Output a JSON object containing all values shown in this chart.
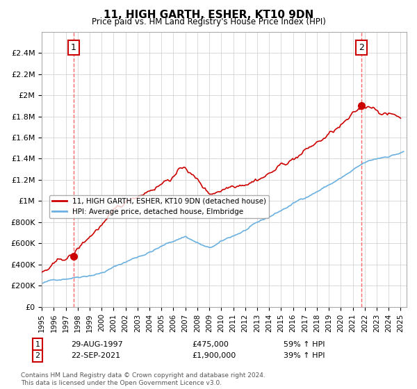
{
  "title": "11, HIGH GARTH, ESHER, KT10 9DN",
  "subtitle": "Price paid vs. HM Land Registry's House Price Index (HPI)",
  "ylim": [
    0,
    2600000
  ],
  "yticks": [
    0,
    200000,
    400000,
    600000,
    800000,
    1000000,
    1200000,
    1400000,
    1600000,
    1800000,
    2000000,
    2200000,
    2400000
  ],
  "ytick_labels": [
    "£0",
    "£200K",
    "£400K",
    "£600K",
    "£800K",
    "£1M",
    "£1.2M",
    "£1.4M",
    "£1.6M",
    "£1.8M",
    "£2M",
    "£2.2M",
    "£2.4M"
  ],
  "xlim_start": 1995.0,
  "xlim_end": 2025.5,
  "xticks": [
    1995,
    1996,
    1997,
    1998,
    1999,
    2000,
    2001,
    2002,
    2003,
    2004,
    2005,
    2006,
    2007,
    2008,
    2009,
    2010,
    2011,
    2012,
    2013,
    2014,
    2015,
    2016,
    2017,
    2018,
    2019,
    2020,
    2021,
    2022,
    2023,
    2024,
    2025
  ],
  "hpi_color": "#6ab0e0",
  "price_color": "#cc0000",
  "dashed_line_color": "#ff6666",
  "marker_color": "#cc0000",
  "legend_label_price": "11, HIGH GARTH, ESHER, KT10 9DN (detached house)",
  "legend_label_hpi": "HPI: Average price, detached house, Elmbridge",
  "annotation1_label": "1",
  "annotation1_date": "29-AUG-1997",
  "annotation1_price": "£475,000",
  "annotation1_pct": "59% ↑ HPI",
  "annotation1_year": 1997.66,
  "annotation2_label": "2",
  "annotation2_date": "22-SEP-2021",
  "annotation2_price": "£1,900,000",
  "annotation2_pct": "39% ↑ HPI",
  "annotation2_year": 2021.72,
  "footnote": "Contains HM Land Registry data © Crown copyright and database right 2024.\nThis data is licensed under the Open Government Licence v3.0.",
  "background_color": "#ffffff",
  "grid_color": "#cccccc"
}
